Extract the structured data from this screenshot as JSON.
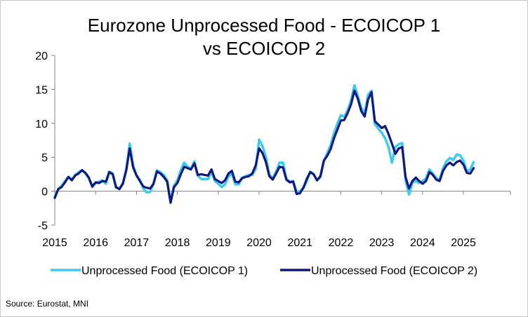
{
  "chart_data": {
    "type": "line",
    "title_lines": [
      "Eurozone Unprocessed Food - ECOICOP 1",
      "vs ECOICOP 2"
    ],
    "xlabel": "",
    "ylabel": "",
    "ylim": [
      -5,
      20
    ],
    "yticks": [
      -5,
      0,
      5,
      10,
      15,
      20
    ],
    "ytick_labels": [
      "-5",
      "0",
      "5",
      "10",
      "15",
      "20"
    ],
    "xlim": [
      2015,
      2026.15
    ],
    "xticks": [
      2015,
      2016,
      2017,
      2018,
      2019,
      2020,
      2021,
      2022,
      2023,
      2024,
      2025
    ],
    "xtick_labels": [
      "2015",
      "2016",
      "2017",
      "2018",
      "2019",
      "2020",
      "2021",
      "2022",
      "2023",
      "2024",
      "2025"
    ],
    "grid": false,
    "legend_position": "bottom",
    "series": [
      {
        "name": "Unprocessed Food (ECOICOP 1)",
        "color": "#3ccbf0",
        "start": 2015.0,
        "step_months": 1,
        "values": [
          -0.9,
          0.3,
          0.8,
          1.5,
          2.1,
          1.7,
          2.4,
          2.8,
          3.1,
          2.6,
          1.9,
          0.6,
          1.2,
          1.4,
          1.6,
          1.1,
          2.9,
          2.6,
          0.5,
          0.4,
          1.2,
          3.3,
          7.0,
          3.8,
          2.4,
          1.6,
          0.4,
          -0.2,
          -0.1,
          1.2,
          3.1,
          2.8,
          2.4,
          1.6,
          -1.5,
          0.8,
          1.6,
          3.1,
          4.2,
          3.6,
          3.3,
          4.4,
          2.3,
          1.8,
          1.8,
          1.8,
          2.9,
          1.5,
          1.1,
          0.6,
          1.0,
          2.2,
          2.6,
          1.0,
          1.0,
          2.0,
          2.2,
          2.4,
          2.4,
          3.3,
          7.6,
          6.6,
          5.0,
          2.4,
          1.9,
          2.9,
          4.2,
          4.2,
          1.8,
          1.4,
          1.5,
          -0.1,
          0.0,
          0.5,
          1.5,
          2.9,
          2.5,
          1.6,
          2.1,
          4.4,
          5.6,
          6.8,
          8.5,
          10.0,
          11.2,
          11.0,
          11.9,
          13.4,
          15.6,
          14.0,
          12.3,
          11.5,
          14.2,
          14.8,
          9.9,
          9.2,
          8.6,
          7.8,
          6.5,
          4.2,
          6.5,
          6.9,
          7.1,
          1.6,
          -0.5,
          1.3,
          1.5,
          1.2,
          1.5,
          1.9,
          3.2,
          2.6,
          1.9,
          1.7,
          3.4,
          4.4,
          4.9,
          4.6,
          5.4,
          5.3,
          4.5,
          2.9,
          3.2,
          4.3
        ]
      },
      {
        "name": "Unprocessed Food (ECOICOP 2)",
        "color": "#101880",
        "start": 2015.0,
        "step_months": 1,
        "values": [
          -1.0,
          0.3,
          0.6,
          1.3,
          2.1,
          1.6,
          2.3,
          2.6,
          3.1,
          2.7,
          2.0,
          0.7,
          1.3,
          1.2,
          1.5,
          1.4,
          2.8,
          2.5,
          0.6,
          0.3,
          1.1,
          3.1,
          6.3,
          3.5,
          2.3,
          1.5,
          0.7,
          0.5,
          0.4,
          1.1,
          2.9,
          2.6,
          2.1,
          1.4,
          -1.7,
          0.6,
          1.2,
          2.5,
          3.6,
          3.4,
          3.2,
          4.1,
          2.4,
          2.5,
          2.4,
          2.3,
          3.2,
          1.8,
          1.5,
          1.2,
          1.6,
          2.6,
          3.0,
          1.4,
          1.3,
          1.9,
          2.1,
          2.2,
          2.6,
          3.8,
          6.3,
          5.6,
          4.3,
          2.2,
          1.7,
          2.6,
          3.6,
          3.5,
          1.7,
          1.3,
          1.4,
          -0.4,
          -0.3,
          0.5,
          1.8,
          2.8,
          2.5,
          1.6,
          2.2,
          4.5,
          5.2,
          6.2,
          7.8,
          9.1,
          10.4,
          10.5,
          11.5,
          12.8,
          14.8,
          13.6,
          11.8,
          11.0,
          13.5,
          14.6,
          10.3,
          9.8,
          9.3,
          9.6,
          8.4,
          7.0,
          5.5,
          6.3,
          6.5,
          2.1,
          0.4,
          1.5,
          2.0,
          1.5,
          1.1,
          1.5,
          2.8,
          2.4,
          1.7,
          1.5,
          3.0,
          3.8,
          4.2,
          3.8,
          4.3,
          4.5,
          3.9,
          2.7,
          2.6,
          3.4
        ]
      }
    ]
  },
  "source": "Source: Eurostat, MNI"
}
